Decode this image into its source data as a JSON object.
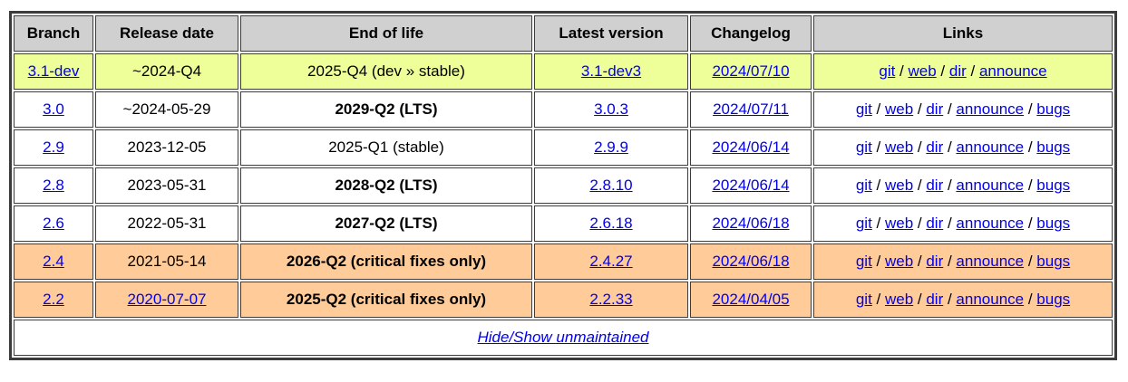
{
  "colors": {
    "header-bg": "#d0d0d0",
    "dev-row-bg": "#eeff99",
    "stable-row-bg": "#ffffff",
    "unmaintained-row-bg": "#ffcc99",
    "link-color": "#0000ee",
    "border-dark": "#3c3c3c",
    "text-color": "#000000"
  },
  "table": {
    "headers": [
      {
        "label": "Branch"
      },
      {
        "label": "Release date"
      },
      {
        "label": "End of life"
      },
      {
        "label": "Latest version"
      },
      {
        "label": "Changelog"
      },
      {
        "label": "Links"
      }
    ],
    "links_separator": " / ",
    "rows": [
      {
        "status": "dev",
        "branch": "3.1-dev",
        "release_date": "~2024-Q4",
        "eol": "2025-Q4 (dev » stable)",
        "eol_bold": false,
        "latest": "3.1-dev3",
        "changelog": "2024/07/10",
        "links": [
          "git",
          "web",
          "dir",
          "announce"
        ]
      },
      {
        "status": "stable",
        "branch": "3.0",
        "release_date": "~2024-05-29",
        "eol": "2029-Q2 (LTS)",
        "eol_bold": true,
        "latest": "3.0.3",
        "changelog": "2024/07/11",
        "links": [
          "git",
          "web",
          "dir",
          "announce",
          "bugs"
        ]
      },
      {
        "status": "stable",
        "branch": "2.9",
        "release_date": "2023-12-05",
        "eol": "2025-Q1 (stable)",
        "eol_bold": false,
        "latest": "2.9.9",
        "changelog": "2024/06/14",
        "links": [
          "git",
          "web",
          "dir",
          "announce",
          "bugs"
        ]
      },
      {
        "status": "stable",
        "branch": "2.8",
        "release_date": "2023-05-31",
        "eol": "2028-Q2 (LTS)",
        "eol_bold": true,
        "latest": "2.8.10",
        "changelog": "2024/06/14",
        "links": [
          "git",
          "web",
          "dir",
          "announce",
          "bugs"
        ]
      },
      {
        "status": "stable",
        "branch": "2.6",
        "release_date": "2022-05-31",
        "eol": "2027-Q2 (LTS)",
        "eol_bold": true,
        "latest": "2.6.18",
        "changelog": "2024/06/18",
        "links": [
          "git",
          "web",
          "dir",
          "announce",
          "bugs"
        ]
      },
      {
        "status": "unmaintained",
        "branch": "2.4",
        "release_date": "2021-05-14",
        "eol": "2026-Q2 (critical fixes only)",
        "eol_bold": true,
        "latest": "2.4.27",
        "changelog": "2024/06/18",
        "links": [
          "git",
          "web",
          "dir",
          "announce",
          "bugs"
        ]
      },
      {
        "status": "unmaintained",
        "branch": "2.2",
        "release_date": "2020-07-07",
        "release_date_is_link": true,
        "eol": "2025-Q2 (critical fixes only)",
        "eol_bold": true,
        "latest": "2.2.33",
        "changelog": "2024/04/05",
        "links": [
          "git",
          "web",
          "dir",
          "announce",
          "bugs"
        ]
      }
    ],
    "footer": {
      "label": "Hide/Show unmaintained"
    }
  }
}
